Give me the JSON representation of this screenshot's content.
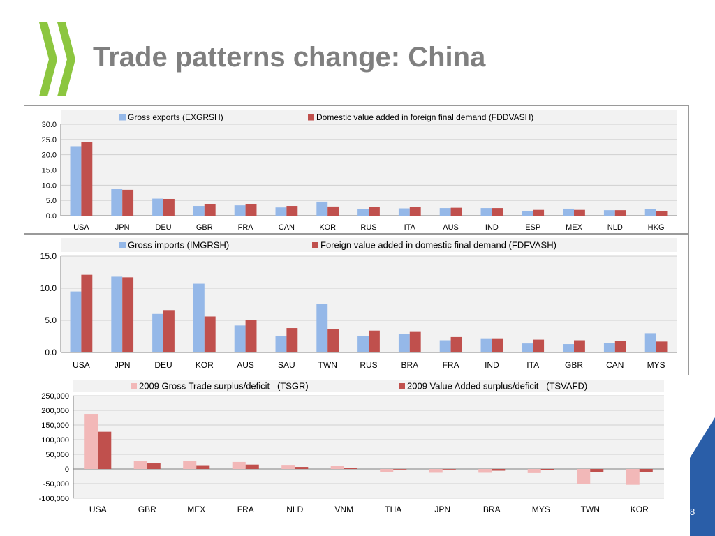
{
  "slide": {
    "title": "Trade patterns change: China",
    "page_number": "8"
  },
  "colors": {
    "title": "#7f7f7f",
    "logo_green": "#8cc63f",
    "corner_blue": "#2a5ea8",
    "plot_bg": "#f2f2f2",
    "grid": "#d0d0d0",
    "blue_series": "#95b8e8",
    "red_series": "#c0504d",
    "pink_series": "#f2b8b8"
  },
  "chart_data": [
    {
      "type": "bar",
      "title": "",
      "xlabel": "",
      "ylabel": "",
      "categories": [
        "USA",
        "JPN",
        "DEU",
        "GBR",
        "FRA",
        "CAN",
        "KOR",
        "RUS",
        "ITA",
        "AUS",
        "IND",
        "ESP",
        "MEX",
        "NLD",
        "HKG"
      ],
      "series": [
        {
          "name": "Gross exports (EXGRSH)",
          "color": "#95b8e8",
          "values": [
            22.8,
            8.7,
            5.6,
            3.2,
            3.4,
            2.7,
            4.6,
            2.1,
            2.4,
            2.5,
            2.5,
            1.5,
            2.3,
            1.8,
            2.1
          ]
        },
        {
          "name": "Domestic value added in foreign final demand (FDDVASH)",
          "color": "#c0504d",
          "values": [
            24.1,
            8.5,
            5.5,
            3.8,
            3.8,
            3.2,
            3.0,
            2.9,
            2.8,
            2.6,
            2.5,
            1.9,
            1.9,
            1.8,
            1.5
          ]
        }
      ],
      "ylim": [
        0,
        30
      ],
      "ticks": [
        0,
        5,
        10,
        15,
        20,
        25,
        30
      ],
      "tick_labels": [
        "0.0",
        "5.0",
        "10.0",
        "15.0",
        "20.0",
        "25.0",
        "30.0"
      ],
      "grid": true,
      "legend": "top"
    },
    {
      "type": "bar",
      "title": "",
      "xlabel": "",
      "ylabel": "",
      "categories": [
        "USA",
        "JPN",
        "DEU",
        "KOR",
        "AUS",
        "SAU",
        "TWN",
        "RUS",
        "BRA",
        "FRA",
        "IND",
        "ITA",
        "GBR",
        "CAN",
        "MYS"
      ],
      "series": [
        {
          "name": "Gross imports (IMGRSH)",
          "color": "#95b8e8",
          "values": [
            9.5,
            11.8,
            6.0,
            10.7,
            4.2,
            2.6,
            7.6,
            2.6,
            2.9,
            1.9,
            2.1,
            1.4,
            1.3,
            1.5,
            3.0
          ]
        },
        {
          "name": "Foreign value added in domestic final demand (FDFVASH)",
          "color": "#c0504d",
          "values": [
            12.1,
            11.7,
            6.6,
            5.6,
            5.0,
            3.8,
            3.6,
            3.4,
            3.3,
            2.4,
            2.1,
            2.0,
            1.9,
            1.8,
            1.7
          ]
        }
      ],
      "ylim": [
        0,
        15
      ],
      "ticks": [
        0,
        5,
        10,
        15
      ],
      "tick_labels": [
        "0.0",
        "5.0",
        "10.0",
        "15.0"
      ],
      "grid": true,
      "legend": "top"
    },
    {
      "type": "bar",
      "title": "",
      "xlabel": "",
      "ylabel": "",
      "categories": [
        "USA",
        "GBR",
        "MEX",
        "FRA",
        "NLD",
        "VNM",
        "THA",
        "JPN",
        "BRA",
        "MYS",
        "TWN",
        "KOR"
      ],
      "series": [
        {
          "name": "2009 Gross Trade surplus/deficit   (TSGR)",
          "color": "#f2b8b8",
          "values": [
            188000,
            28000,
            27000,
            24000,
            14000,
            11000,
            -11000,
            -13000,
            -13000,
            -14000,
            -52000,
            -54000
          ]
        },
        {
          "name": "2009 Value Added surplus/deficit   (TSVAFD)",
          "color": "#c0504d",
          "values": [
            127000,
            19000,
            13000,
            15000,
            7000,
            4000,
            -2000,
            -2000,
            -6000,
            -4000,
            -11000,
            -11000
          ]
        }
      ],
      "ylim": [
        -100000,
        250000
      ],
      "ticks": [
        -100000,
        -50000,
        0,
        50000,
        100000,
        150000,
        200000,
        250000
      ],
      "tick_labels": [
        "-100,000",
        "-50,000",
        "0",
        "50,000",
        "100,000",
        "150,000",
        "200,000",
        "250,000"
      ],
      "grid": true,
      "legend": "top"
    }
  ]
}
